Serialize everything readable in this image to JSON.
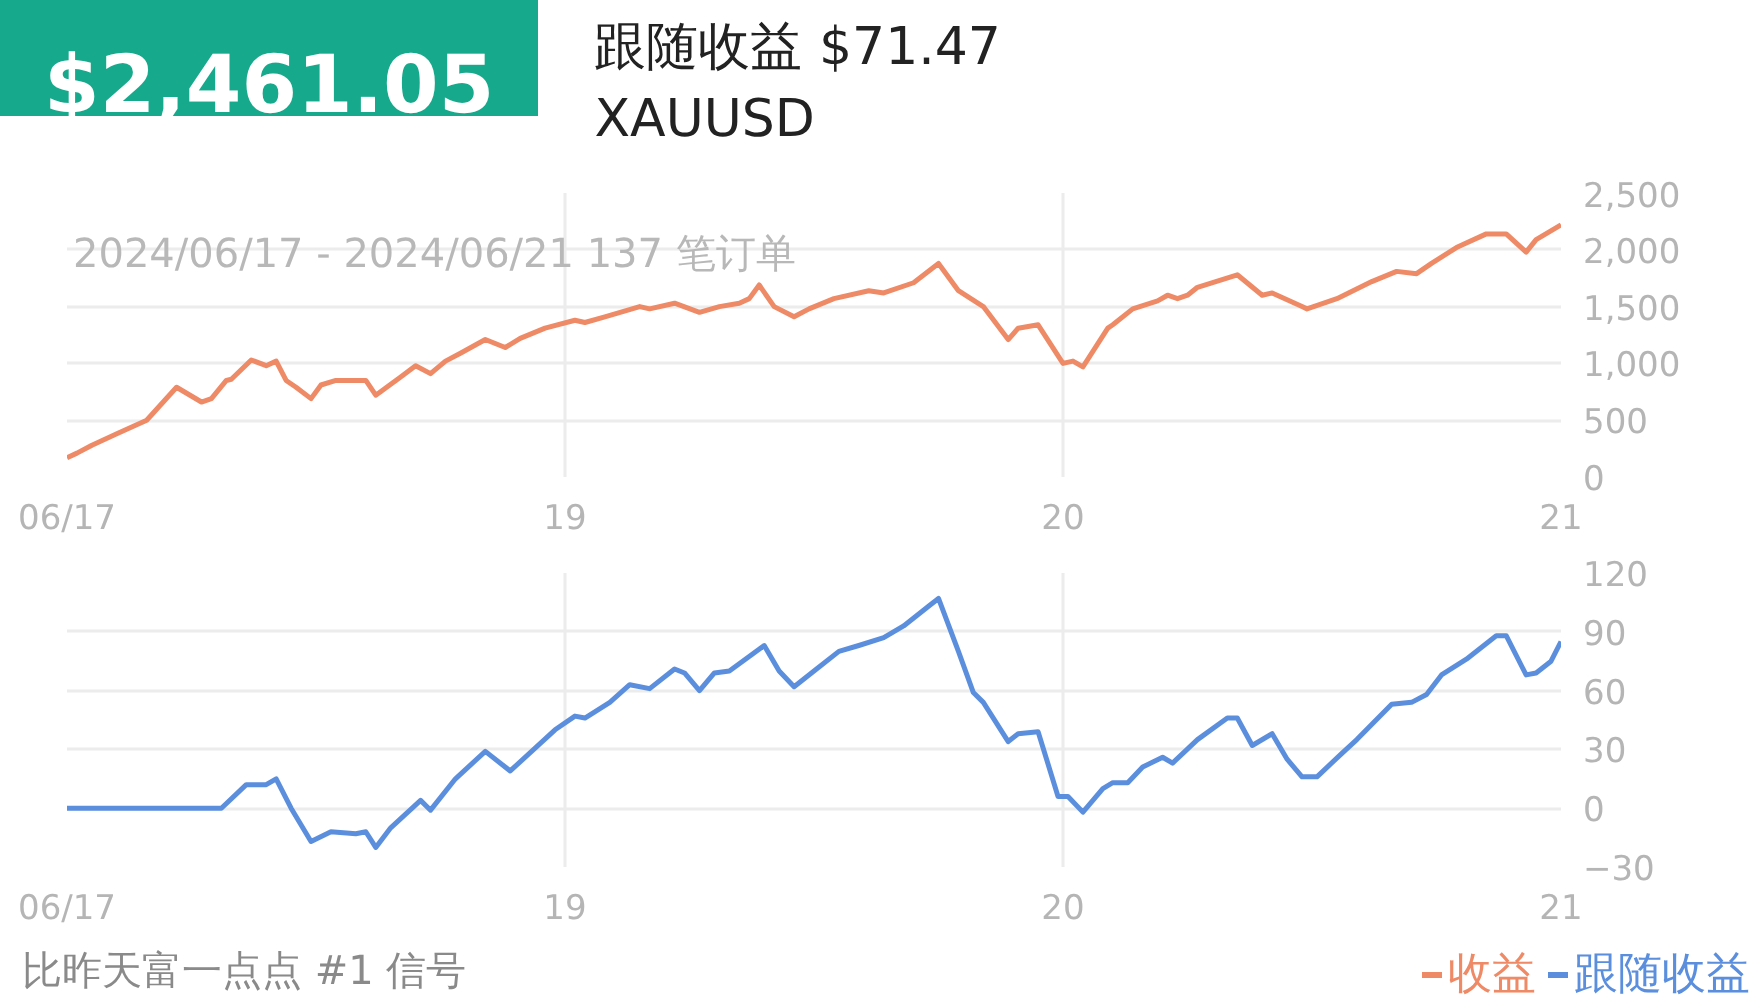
{
  "chart_data": [
    {
      "type": "line",
      "title": "$2,461.05",
      "subtitle": "跟随收益 $71.47",
      "annotations": [
        "XAUUSD",
        "2024/06/17 - 2024/06/21 137 笔订单"
      ],
      "xlim": [
        18,
        21
      ],
      "xticks": [
        {
          "value": 18,
          "label": "06/17"
        },
        19,
        20,
        21
      ],
      "ylim": [
        0,
        2500
      ],
      "yticks": [
        0,
        500,
        {
          "value": 1000,
          "label": "1,000"
        },
        {
          "value": 1500,
          "label": "1,500"
        },
        {
          "value": 2000,
          "label": "2,000"
        },
        {
          "value": 2500,
          "label": "2,500"
        }
      ],
      "grid": true,
      "legend": "bottom right",
      "marker": "none",
      "line_style": "solid",
      "series": [
        {
          "name": "收益",
          "color": "#ee8a66",
          "x": [
            18,
            18.02,
            18.05,
            18.1,
            18.16,
            18.22,
            18.27,
            18.29,
            18.32,
            18.33,
            18.37,
            18.4,
            18.42,
            18.44,
            18.46,
            18.49,
            18.51,
            18.54,
            18.6,
            18.62,
            18.67,
            18.7,
            18.73,
            18.76,
            18.79,
            18.84,
            18.88,
            18.91,
            18.96,
            19.02,
            19.04,
            19.08,
            19.15,
            19.17,
            19.22,
            19.27,
            19.31,
            19.35,
            19.37,
            19.39,
            19.42,
            19.46,
            19.49,
            19.54,
            19.61,
            19.64,
            19.7,
            19.75,
            19.79,
            19.84,
            19.89,
            19.91,
            19.95,
            20.0,
            20.02,
            20.04,
            20.09,
            20.1,
            20.14,
            20.19,
            20.21,
            20.23,
            20.25,
            20.27,
            20.35,
            20.4,
            20.42,
            20.48,
            20.49,
            20.55,
            20.62,
            20.67,
            20.71,
            20.74,
            20.79,
            20.85,
            20.89,
            20.93,
            20.95,
            21.0
          ],
          "values": [
            170,
            210,
            280,
            380,
            500,
            790,
            660,
            690,
            850,
            860,
            1030,
            980,
            1020,
            850,
            790,
            690,
            810,
            850,
            850,
            720,
            880,
            980,
            910,
            1020,
            1090,
            1210,
            1140,
            1220,
            1310,
            1380,
            1360,
            1410,
            1500,
            1480,
            1530,
            1450,
            1500,
            1530,
            1570,
            1690,
            1500,
            1410,
            1480,
            1570,
            1640,
            1620,
            1710,
            1880,
            1640,
            1500,
            1210,
            1310,
            1340,
            1000,
            1020,
            970,
            1310,
            1340,
            1480,
            1550,
            1600,
            1570,
            1600,
            1670,
            1780,
            1600,
            1620,
            1500,
            1480,
            1570,
            1720,
            1810,
            1790,
            1880,
            2020,
            2140,
            2140,
            1980,
            2090,
            2220
          ]
        }
      ]
    },
    {
      "type": "line",
      "annotations": [
        "比昨天富一点点 #1 信号"
      ],
      "xlim": [
        18,
        21
      ],
      "xticks": [
        {
          "value": 18,
          "label": "06/17"
        },
        19,
        20,
        21
      ],
      "ylim": [
        -30,
        120
      ],
      "yticks": [
        -30,
        0,
        30,
        60,
        90,
        120
      ],
      "grid": true,
      "legend": "bottom right",
      "marker": "none",
      "line_style": "solid",
      "series": [
        {
          "name": "跟随收益",
          "color": "#5b8fde",
          "x": [
            18,
            18.31,
            18.36,
            18.4,
            18.42,
            18.45,
            18.49,
            18.53,
            18.58,
            18.6,
            18.62,
            18.65,
            18.71,
            18.73,
            18.78,
            18.84,
            18.89,
            18.98,
            19.02,
            19.04,
            19.09,
            19.13,
            19.17,
            19.22,
            19.24,
            19.27,
            19.3,
            19.33,
            19.4,
            19.43,
            19.46,
            19.5,
            19.55,
            19.59,
            19.64,
            19.68,
            19.73,
            19.75,
            19.79,
            19.82,
            19.84,
            19.89,
            19.91,
            19.95,
            19.99,
            20.01,
            20.04,
            20.08,
            20.1,
            20.13,
            20.16,
            20.2,
            20.22,
            20.27,
            20.33,
            20.35,
            20.38,
            20.42,
            20.45,
            20.48,
            20.51,
            20.56,
            20.59,
            20.66,
            20.7,
            20.73,
            20.76,
            20.81,
            20.87,
            20.89,
            20.93,
            20.95,
            20.98,
            21.0
          ],
          "values": [
            0,
            0,
            12,
            12,
            15,
            0,
            -17,
            -12,
            -13,
            -12,
            -20,
            -10,
            4,
            -1,
            15,
            29,
            19,
            40,
            47,
            46,
            54,
            63,
            61,
            71,
            69,
            60,
            69,
            70,
            83,
            70,
            62,
            70,
            80,
            83,
            87,
            93,
            103,
            107,
            80,
            59,
            54,
            34,
            38,
            39,
            6,
            6,
            -2,
            10,
            13,
            13,
            21,
            26,
            23,
            35,
            46,
            46,
            32,
            38,
            25,
            16,
            16,
            28,
            35,
            53,
            54,
            58,
            68,
            76,
            88,
            88,
            68,
            69,
            75,
            85
          ]
        }
      ]
    }
  ]
}
